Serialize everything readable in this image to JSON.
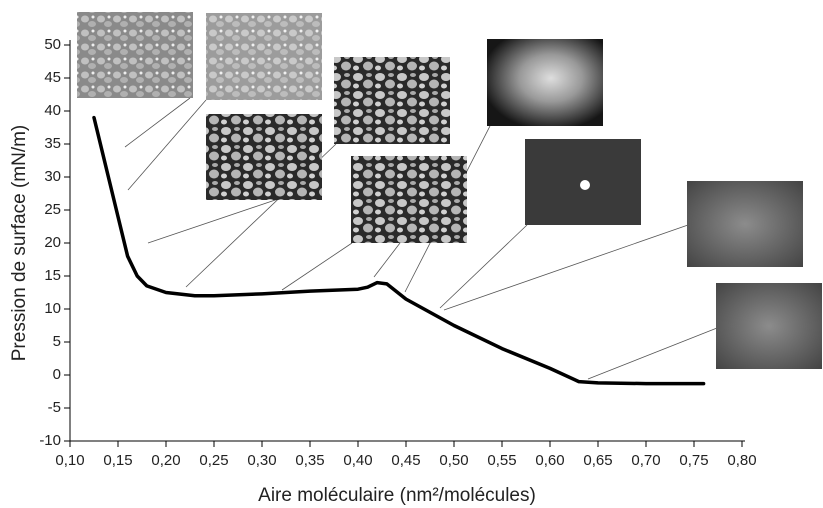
{
  "chart_data": {
    "type": "line",
    "x_label": "Aire moléculaire (nm²/molécules)",
    "y_label": "Pression de surface (mN/m)",
    "x": [
      0.125,
      0.135,
      0.14,
      0.15,
      0.16,
      0.17,
      0.18,
      0.2,
      0.23,
      0.25,
      0.3,
      0.35,
      0.4,
      0.41,
      0.42,
      0.43,
      0.45,
      0.5,
      0.55,
      0.6,
      0.63,
      0.65,
      0.7,
      0.76
    ],
    "values": [
      39,
      33,
      30,
      24,
      18,
      15,
      13.5,
      12.5,
      12,
      12,
      12.3,
      12.7,
      13,
      13.3,
      14,
      13.8,
      11.5,
      7.5,
      4,
      1,
      -1,
      -1.2,
      -1.3,
      -1.3
    ],
    "color": "#000000",
    "xlim": [
      0.1,
      0.8
    ],
    "xticks": [
      {
        "value": 0.1,
        "label": "0,10"
      },
      {
        "value": 0.15,
        "label": "0,15"
      },
      {
        "value": 0.2,
        "label": "0,20"
      },
      {
        "value": 0.25,
        "label": "0,25"
      },
      {
        "value": 0.3,
        "label": "0,30"
      },
      {
        "value": 0.35,
        "label": "0,35"
      },
      {
        "value": 0.4,
        "label": "0,40"
      },
      {
        "value": 0.45,
        "label": "0,45"
      },
      {
        "value": 0.5,
        "label": "0,50"
      },
      {
        "value": 0.55,
        "label": "0,55"
      },
      {
        "value": 0.6,
        "label": "0,60"
      },
      {
        "value": 0.65,
        "label": "0,65"
      },
      {
        "value": 0.7,
        "label": "0,70"
      },
      {
        "value": 0.75,
        "label": "0,75"
      },
      {
        "value": 0.8,
        "label": "0,80"
      }
    ],
    "ylim": [
      -10,
      50
    ],
    "yticks": [
      -10,
      -5,
      0,
      5,
      10,
      15,
      20,
      25,
      30,
      35,
      40,
      45,
      50
    ]
  }
}
